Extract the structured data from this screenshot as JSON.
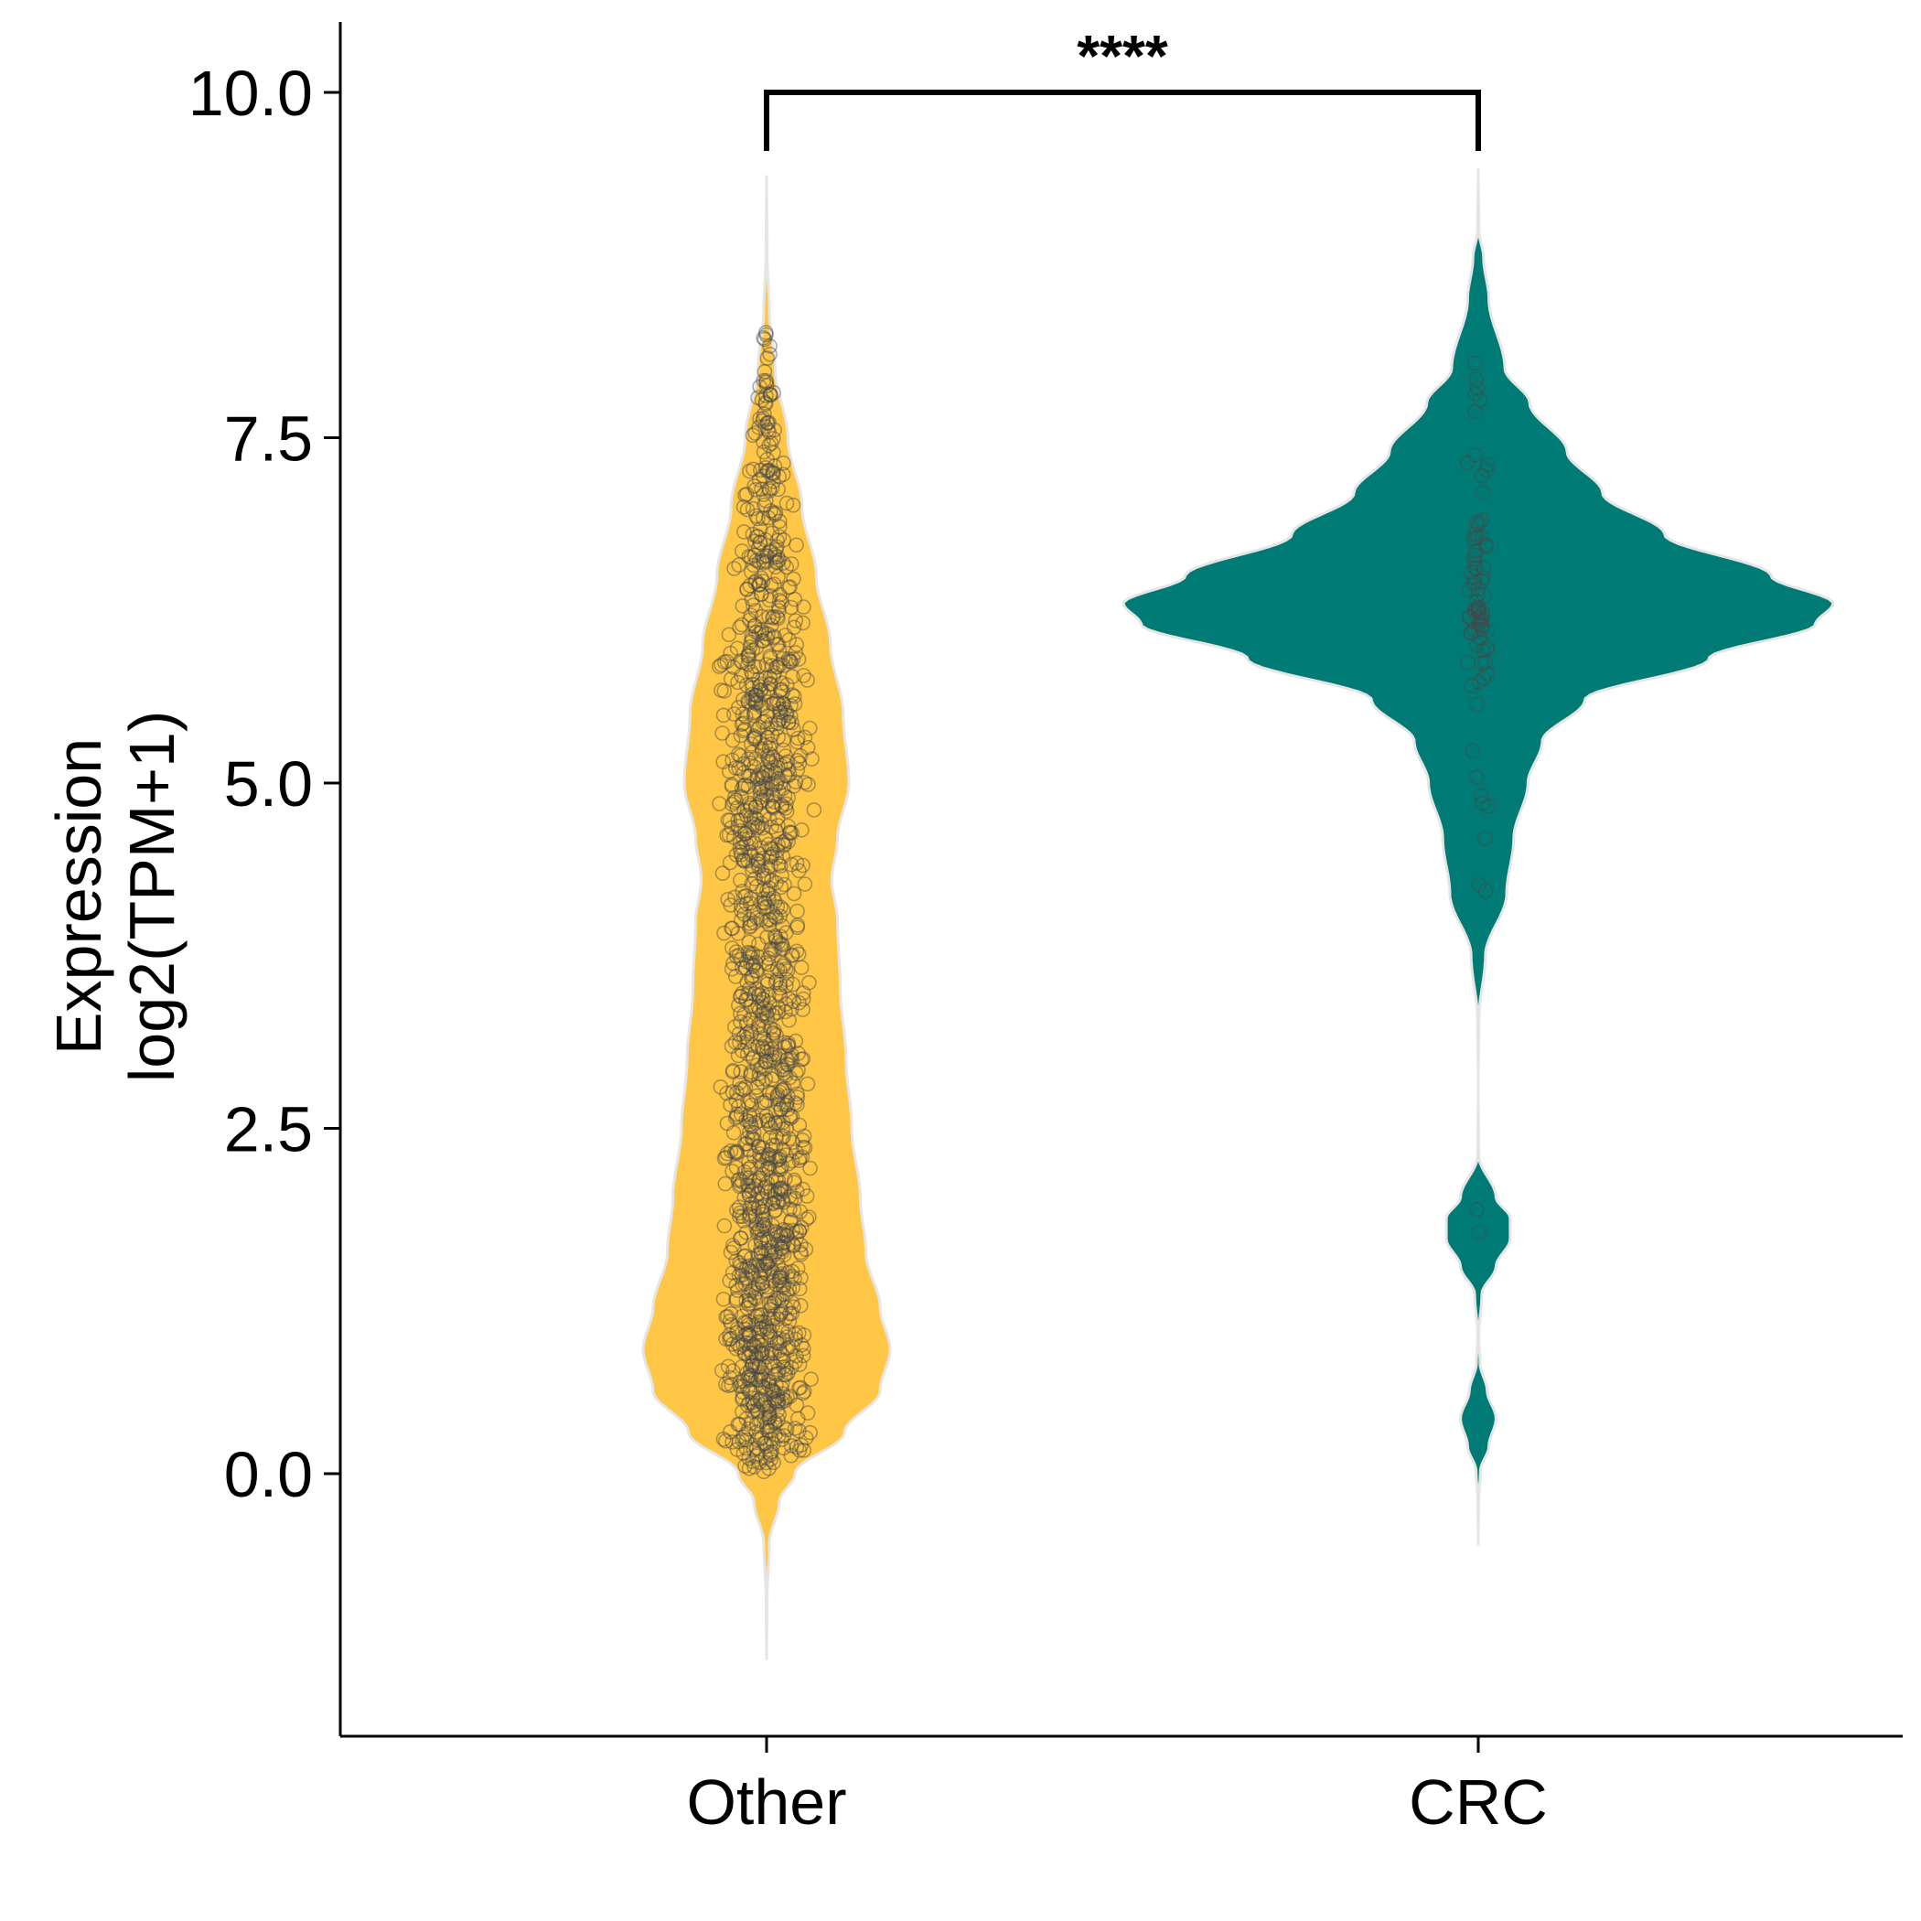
{
  "chart_data": {
    "type": "violin",
    "title": "",
    "xlabel": "",
    "ylabel_lines": [
      "Expression",
      "log2(TPM+1)"
    ],
    "ylim": [
      -1.6,
      10.6
    ],
    "yticks": [
      0.0,
      2.5,
      5.0,
      7.5,
      10.0
    ],
    "ytick_labels": [
      "0.0",
      "2.5",
      "5.0",
      "7.5",
      "10.0"
    ],
    "categories": [
      "Other",
      "CRC"
    ],
    "grid": false,
    "legend": "none",
    "groups": [
      {
        "label": "Other",
        "color": "#FFC745",
        "outline": "#E5E5E5",
        "range": [
          -1.35,
          9.4
        ],
        "density_y": [
          -1.35,
          -0.9,
          -0.5,
          -0.2,
          0.0,
          0.3,
          0.6,
          0.9,
          1.2,
          1.6,
          2.0,
          2.5,
          3.0,
          3.5,
          4.0,
          4.3,
          4.6,
          5.0,
          5.5,
          6.0,
          6.5,
          7.0,
          7.5,
          8.0,
          8.4,
          8.8,
          9.4
        ],
        "density_w": [
          0.0,
          0.004,
          0.02,
          0.09,
          0.2,
          0.55,
          0.8,
          0.87,
          0.8,
          0.7,
          0.66,
          0.6,
          0.56,
          0.52,
          0.5,
          0.46,
          0.5,
          0.58,
          0.54,
          0.45,
          0.35,
          0.25,
          0.15,
          0.06,
          0.02,
          0.005,
          0.0
        ],
        "point_count": 1500,
        "point_range": [
          0.0,
          8.45
        ]
      },
      {
        "label": "CRC",
        "color": "#007A74",
        "outline": "#E5E5E5",
        "range": [
          -0.52,
          9.45
        ],
        "density_y": [
          -0.52,
          -0.2,
          0.02,
          0.2,
          0.4,
          0.6,
          0.8,
          1.0,
          1.3,
          1.5,
          1.7,
          1.85,
          2.0,
          2.3,
          2.8,
          3.3,
          3.75,
          4.2,
          4.6,
          5.0,
          5.3,
          5.6,
          5.9,
          6.15,
          6.3,
          6.5,
          6.8,
          7.1,
          7.4,
          7.75,
          8.0,
          8.5,
          8.8,
          9.0,
          9.45
        ],
        "density_w": [
          0.0,
          0.002,
          0.012,
          0.06,
          0.1,
          0.05,
          0.01,
          0.003,
          0.02,
          0.1,
          0.18,
          0.18,
          0.1,
          0.003,
          0.0,
          0.004,
          0.04,
          0.16,
          0.2,
          0.28,
          0.36,
          0.6,
          1.3,
          1.9,
          2.0,
          1.65,
          1.05,
          0.7,
          0.5,
          0.29,
          0.15,
          0.06,
          0.03,
          0.004,
          0.0
        ],
        "point_count": 90,
        "point_range": [
          0.35,
          8.6
        ]
      }
    ],
    "significance": {
      "label": "****",
      "between": [
        "Other",
        "CRC"
      ],
      "y": 10.0
    }
  }
}
